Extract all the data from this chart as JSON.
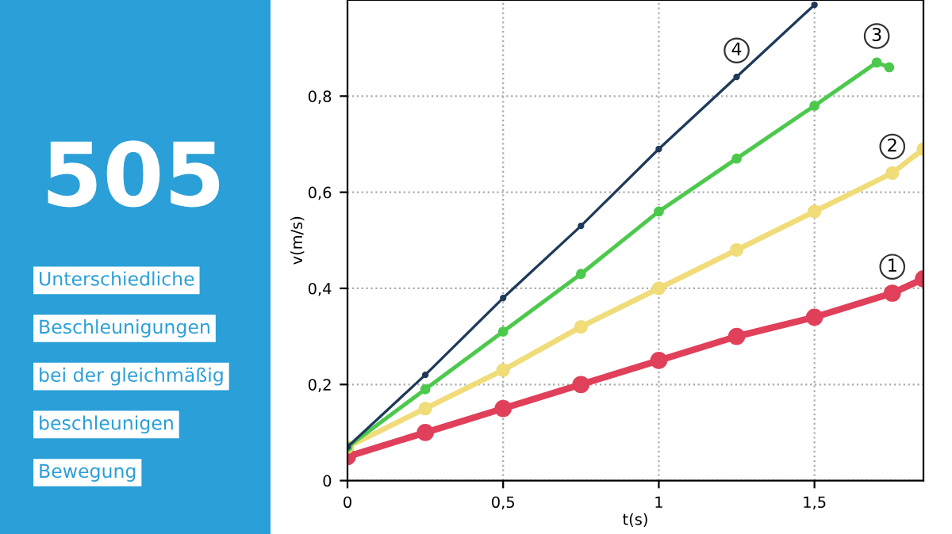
{
  "chart_data": {
    "type": "line",
    "title": "Unterschiedliche\nBeschleunigungen\nbei der gleichmäßig\nbeschleunigen\nBewegung",
    "subtitle": "505",
    "xlabel": "t(s)",
    "ylabel": "v(m/s)",
    "xlim": [
      0,
      1.85
    ],
    "ylim": [
      0,
      1.0
    ],
    "xticks": [
      0,
      {
        "value": 0.5,
        "label": "0,5"
      },
      1,
      {
        "value": 1.5,
        "label": "1,5"
      }
    ],
    "yticks": [
      0,
      {
        "value": 0.2,
        "label": "0,2"
      },
      {
        "value": 0.4,
        "label": "0,4"
      },
      {
        "value": 0.6,
        "label": "0,6"
      },
      {
        "value": 0.8,
        "label": "0,8"
      }
    ],
    "grid": true,
    "legend": false,
    "marker": "circle",
    "line_style": "solid",
    "series": [
      {
        "name": "1",
        "color": "#e0405a",
        "x": [
          0,
          0.25,
          0.5,
          0.75,
          1,
          1.25,
          1.5,
          1.75,
          1.85
        ],
        "values": [
          0.05,
          0.1,
          0.15,
          0.2,
          0.25,
          0.3,
          0.34,
          0.39,
          0.42
        ]
      },
      {
        "name": "2",
        "color": "#f0dc78",
        "x": [
          0,
          0.25,
          0.5,
          0.75,
          1,
          1.25,
          1.5,
          1.75,
          1.85
        ],
        "values": [
          0.07,
          0.15,
          0.23,
          0.32,
          0.4,
          0.48,
          0.56,
          0.64,
          0.69
        ]
      },
      {
        "name": "3",
        "color": "#4cc94c",
        "x": [
          0,
          0.25,
          0.5,
          0.75,
          1,
          1.25,
          1.5,
          1.7,
          1.74
        ],
        "values": [
          0.07,
          0.19,
          0.31,
          0.43,
          0.56,
          0.67,
          0.78,
          0.87,
          0.86
        ]
      },
      {
        "name": "4",
        "color": "#1f3a5a",
        "x": [
          0,
          0.25,
          0.5,
          0.75,
          1,
          1.25,
          1.5
        ],
        "values": [
          0.07,
          0.22,
          0.38,
          0.53,
          0.69,
          0.84,
          0.99
        ]
      }
    ]
  }
}
